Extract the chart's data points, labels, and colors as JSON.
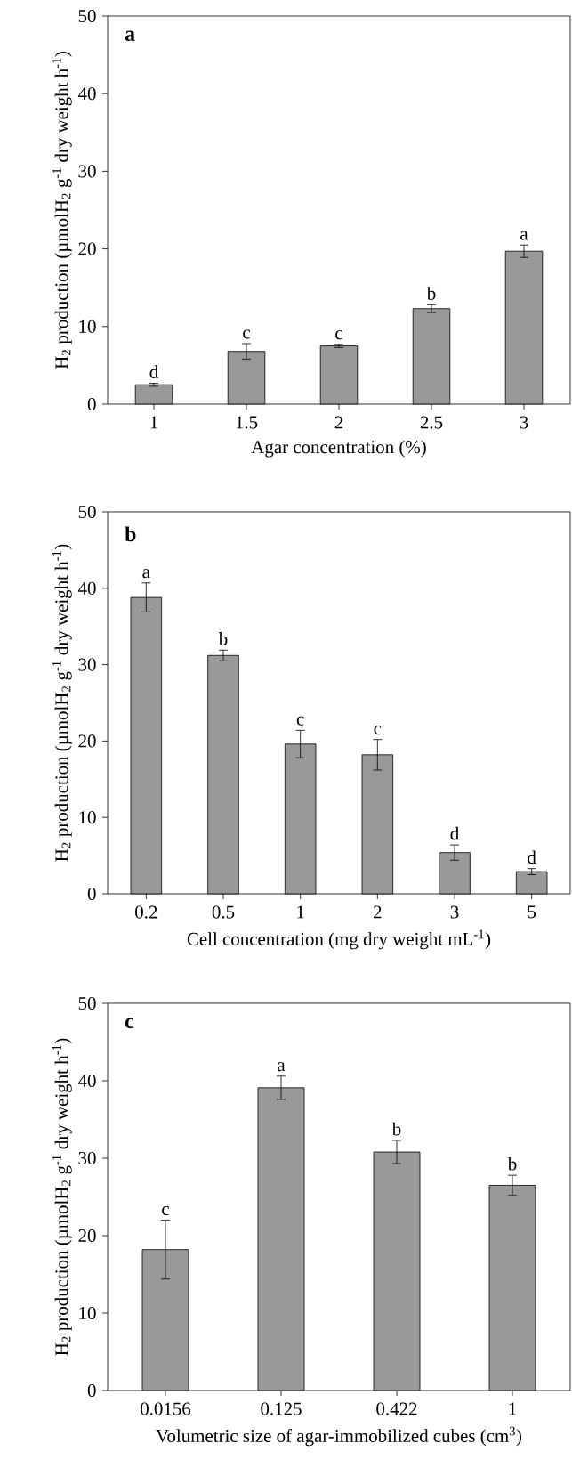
{
  "chart_data": [
    {
      "type": "bar",
      "categories": [
        "1",
        "1.5",
        "2",
        "2.5",
        "3"
      ],
      "values": [
        2.5,
        6.8,
        7.5,
        12.3,
        19.7
      ],
      "errors": [
        0.2,
        1.0,
        0.2,
        0.5,
        0.8
      ],
      "color": "#999999",
      "xlabel": "Agar concentration (%)",
      "ylabel": "H$_{2}$ production (µmolH$_{2}$ g$^{-1}$ dry weight h$^{-1}$)",
      "ylim": [
        0,
        50
      ],
      "yticks": [
        0,
        10,
        20,
        30,
        40,
        50
      ],
      "annotations": [
        "a",
        {
          "text": "d",
          "x": "1",
          "y": 2.7
        },
        {
          "text": "c",
          "x": "1.5",
          "y": 7.8
        },
        {
          "text": "c",
          "x": "2",
          "y": 7.7
        },
        {
          "text": "b",
          "x": "2.5",
          "y": 12.8
        },
        {
          "text": "a",
          "x": "3",
          "y": 20.5
        }
      ]
    },
    {
      "type": "bar",
      "categories": [
        "0.2",
        "0.5",
        "1",
        "2",
        "3",
        "5"
      ],
      "values": [
        38.8,
        31.2,
        19.6,
        18.2,
        5.4,
        2.9
      ],
      "errors": [
        1.9,
        0.7,
        1.8,
        2.0,
        1.0,
        0.4
      ],
      "color": "#999999",
      "xlabel": "Cell concentration (mg dry weight mL$^{-1}$)",
      "ylabel": "H$_{2}$ production (µmolH$_{2}$ g$^{-1}$ dry weight h$^{-1}$)",
      "ylim": [
        0,
        50
      ],
      "yticks": [
        0,
        10,
        20,
        30,
        40,
        50
      ],
      "annotations": [
        "b",
        {
          "text": "a",
          "x": "0.2",
          "y": 40.7
        },
        {
          "text": "b",
          "x": "0.5",
          "y": 31.9
        },
        {
          "text": "c",
          "x": "1",
          "y": 21.4
        },
        {
          "text": "c",
          "x": "2",
          "y": 20.2
        },
        {
          "text": "d",
          "x": "3",
          "y": 6.4
        },
        {
          "text": "d",
          "x": "5",
          "y": 3.3
        }
      ]
    },
    {
      "type": "bar",
      "categories": [
        "0.0156",
        "0.125",
        "0.422",
        "1"
      ],
      "values": [
        18.2,
        39.1,
        30.8,
        26.5
      ],
      "errors": [
        3.8,
        1.5,
        1.5,
        1.3
      ],
      "color": "#999999",
      "xlabel": "Volumetric size of agar-immobilized cubes (cm$^{3}$)",
      "ylabel": "H$_{2}$ production (µmolH$_{2}$ g$^{-1}$ dry weight h$^{-1}$)",
      "ylim": [
        0,
        50
      ],
      "yticks": [
        0,
        10,
        20,
        30,
        40,
        50
      ],
      "annotations": [
        "c",
        {
          "text": "c",
          "x": "0.0156",
          "y": 22.0
        },
        {
          "text": "a",
          "x": "0.125",
          "y": 40.6
        },
        {
          "text": "b",
          "x": "0.422",
          "y": 32.3
        },
        {
          "text": "b",
          "x": "1",
          "y": 27.8
        }
      ]
    }
  ]
}
